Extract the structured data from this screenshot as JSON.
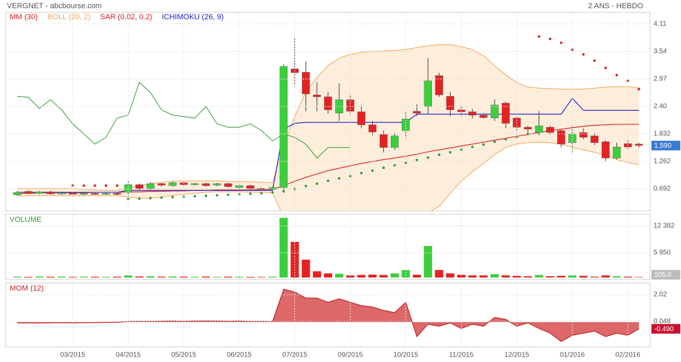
{
  "chart_data": [
    {
      "type": "candlestick",
      "title": "VERGNET - abcbourse.com",
      "subtitle": "2 ANS - HEBDO",
      "categories": [
        null,
        null,
        null,
        null,
        null,
        "03/2015",
        null,
        null,
        null,
        null,
        "04/2015",
        null,
        null,
        null,
        null,
        "05/2015",
        null,
        null,
        null,
        null,
        "06/2015",
        null,
        null,
        null,
        null,
        "07/2015",
        null,
        null,
        null,
        null,
        "09/2015",
        null,
        null,
        null,
        null,
        "10/2015",
        null,
        null,
        null,
        null,
        "11/2015",
        null,
        null,
        null,
        null,
        "12/2015",
        null,
        null,
        null,
        null,
        "01/2016",
        null,
        null,
        null,
        null,
        "02/2016",
        null
      ],
      "open": [
        0.57,
        0.64,
        0.6,
        0.63,
        0.59,
        0.61,
        0.58,
        0.6,
        0.59,
        0.6,
        0.62,
        0.78,
        0.7,
        0.8,
        0.76,
        0.82,
        0.78,
        0.8,
        0.77,
        0.8,
        0.72,
        0.76,
        0.7,
        0.68,
        0.72,
        3.18,
        3.11,
        2.64,
        2.6,
        2.26,
        2.54,
        2.29,
        2.02,
        1.82,
        1.55,
        1.9,
        2.3,
        2.4,
        3.04,
        2.61,
        2.33,
        2.29,
        2.22,
        2.16,
        2.47,
        2.16,
        1.97,
        1.86,
        1.97,
        1.9,
        1.65,
        1.86,
        1.79,
        1.67,
        1.33,
        1.63,
        1.62
      ],
      "high": [
        0.65,
        0.66,
        0.65,
        0.65,
        0.63,
        0.63,
        0.62,
        0.62,
        0.62,
        0.62,
        0.85,
        0.8,
        0.83,
        0.82,
        0.85,
        0.84,
        0.82,
        0.82,
        0.82,
        0.82,
        0.78,
        0.78,
        0.72,
        0.74,
        3.27,
        3.83,
        3.33,
        2.9,
        2.7,
        2.88,
        2.65,
        2.42,
        2.1,
        1.9,
        1.85,
        2.3,
        2.45,
        3.4,
        3.1,
        2.7,
        2.4,
        2.35,
        2.25,
        2.55,
        2.5,
        2.2,
        2.0,
        2.3,
        2.0,
        1.93,
        2.0,
        1.95,
        1.85,
        1.7,
        1.65,
        1.7,
        1.65
      ],
      "low": [
        0.55,
        0.58,
        0.58,
        0.57,
        0.57,
        0.56,
        0.56,
        0.57,
        0.57,
        0.56,
        0.55,
        0.68,
        0.68,
        0.74,
        0.74,
        0.76,
        0.76,
        0.74,
        0.75,
        0.72,
        0.7,
        0.68,
        0.66,
        0.66,
        0.65,
        2.83,
        2.3,
        2.3,
        2.25,
        2.1,
        2.25,
        1.95,
        1.8,
        1.45,
        1.5,
        1.75,
        2.2,
        2.25,
        2.6,
        2.2,
        2.2,
        2.15,
        2.15,
        2.1,
        1.95,
        1.9,
        1.85,
        1.8,
        1.82,
        1.55,
        1.45,
        1.72,
        1.6,
        1.27,
        1.3,
        1.52,
        1.55
      ],
      "close": [
        0.62,
        0.6,
        0.63,
        0.59,
        0.61,
        0.58,
        0.6,
        0.59,
        0.6,
        0.58,
        0.78,
        0.7,
        0.8,
        0.77,
        0.82,
        0.78,
        0.8,
        0.76,
        0.8,
        0.74,
        0.76,
        0.7,
        0.68,
        0.72,
        3.23,
        3.1,
        2.66,
        2.6,
        2.33,
        2.54,
        2.3,
        2.02,
        1.87,
        1.55,
        1.79,
        2.14,
        2.26,
        2.93,
        2.64,
        2.33,
        2.29,
        2.22,
        2.17,
        2.43,
        2.05,
        1.97,
        1.93,
        2.0,
        1.86,
        1.62,
        1.83,
        1.76,
        1.65,
        1.33,
        1.56,
        1.56,
        1.59
      ],
      "up_color": "#3ccf3c",
      "down_color": "#e52222",
      "series": [
        {
          "name": "MM (30)",
          "style": "line",
          "color": "#d91e1e",
          "values": [
            0.6,
            0.6,
            0.61,
            0.61,
            0.61,
            0.61,
            0.61,
            0.62,
            0.62,
            0.62,
            0.63,
            0.63,
            0.64,
            0.64,
            0.65,
            0.65,
            0.66,
            0.66,
            0.67,
            0.67,
            0.67,
            0.67,
            0.68,
            0.68,
            0.76,
            0.85,
            0.93,
            1.0,
            1.07,
            1.12,
            1.17,
            1.22,
            1.26,
            1.3,
            1.33,
            1.37,
            1.41,
            1.46,
            1.5,
            1.54,
            1.58,
            1.62,
            1.66,
            1.7,
            1.74,
            1.78,
            1.82,
            1.86,
            1.9,
            1.93,
            1.96,
            1.99,
            2.01,
            2.02,
            2.03,
            2.03,
            2.03
          ]
        },
        {
          "name": "BOLL (20, 2)",
          "style": "band",
          "color": "#f2a65a",
          "fill": "#fde8d2",
          "values": [
            0.7,
            0.7,
            0.7,
            0.7,
            0.7,
            0.7,
            0.68,
            0.67,
            0.66,
            0.66,
            0.72,
            0.76,
            0.8,
            0.83,
            0.85,
            0.86,
            0.86,
            0.86,
            0.86,
            0.85,
            0.84,
            0.84,
            0.83,
            0.82,
            1.6,
            2.19,
            2.7,
            3.0,
            3.25,
            3.4,
            3.48,
            3.52,
            3.54,
            3.55,
            3.56,
            3.58,
            3.62,
            3.66,
            3.68,
            3.68,
            3.64,
            3.58,
            3.45,
            3.25,
            3.05,
            2.9,
            2.8,
            2.78,
            2.77,
            2.76,
            2.76,
            2.76,
            2.78,
            2.8,
            2.81,
            2.81,
            2.79
          ],
          "lower": [
            0.55,
            0.55,
            0.55,
            0.55,
            0.55,
            0.55,
            0.55,
            0.55,
            0.55,
            0.55,
            0.52,
            0.5,
            0.5,
            0.52,
            0.55,
            0.58,
            0.6,
            0.62,
            0.63,
            0.63,
            0.63,
            0.62,
            0.62,
            0.61,
            0.1,
            -0.35,
            -0.6,
            -0.75,
            -0.85,
            -0.9,
            -0.9,
            -0.85,
            -0.75,
            -0.6,
            -0.4,
            -0.2,
            0.0,
            0.2,
            0.33,
            0.6,
            0.85,
            1.05,
            1.22,
            1.4,
            1.55,
            1.62,
            1.65,
            1.66,
            1.65,
            1.62,
            1.55,
            1.5,
            1.45,
            1.38,
            1.3,
            1.24,
            1.19
          ]
        },
        {
          "name": "SAR (0.02, 0.2)",
          "style": "dots",
          "color": "#d91e1e",
          "below_color": "#2e9e2e",
          "values": [
            null,
            null,
            null,
            null,
            null,
            0.76,
            0.76,
            0.76,
            0.76,
            0.76,
            0.48,
            0.49,
            0.5,
            0.51,
            0.52,
            0.53,
            0.54,
            0.55,
            0.56,
            0.57,
            0.58,
            0.59,
            0.6,
            0.62,
            0.64,
            0.69,
            0.75,
            0.8,
            0.86,
            0.91,
            0.96,
            1.02,
            1.07,
            1.13,
            1.18,
            1.23,
            1.29,
            1.34,
            1.4,
            1.45,
            1.5,
            1.56,
            1.61,
            1.67,
            1.72,
            1.77,
            1.83,
            3.85,
            3.8,
            3.72,
            3.58,
            3.48,
            3.35,
            3.2,
            3.05,
            2.93,
            2.76
          ]
        },
        {
          "name": "ICHIMOKU (26, 9)",
          "style": "line",
          "color": "#1a1acc",
          "values": [
            0.62,
            0.62,
            0.62,
            0.62,
            0.62,
            0.62,
            0.62,
            0.62,
            0.62,
            0.62,
            0.66,
            0.66,
            0.66,
            0.66,
            0.66,
            0.66,
            0.66,
            0.66,
            0.66,
            0.66,
            0.66,
            0.66,
            0.66,
            0.66,
            1.93,
            2.05,
            2.07,
            2.07,
            2.07,
            2.07,
            2.07,
            2.07,
            2.07,
            2.07,
            2.07,
            2.07,
            2.24,
            2.24,
            2.24,
            2.24,
            2.24,
            2.24,
            2.24,
            2.24,
            2.24,
            2.24,
            2.24,
            2.24,
            2.24,
            2.24,
            2.57,
            2.32,
            2.32,
            2.32,
            2.32,
            2.32,
            2.32
          ],
          "lagging": [
            2.61,
            2.59,
            2.36,
            2.54,
            2.33,
            2.04,
            1.83,
            1.62,
            1.76,
            2.16,
            2.22,
            2.9,
            2.69,
            2.33,
            2.22,
            2.19,
            2.16,
            2.4,
            2.04,
            1.97,
            1.97,
            2.04,
            1.9,
            1.69,
            1.83,
            1.76,
            1.62,
            1.33,
            1.55,
            1.55,
            1.55,
            null,
            null,
            null,
            null,
            null,
            null,
            null,
            null,
            null,
            null,
            null,
            null,
            null,
            null,
            null,
            null,
            null,
            null,
            null,
            null,
            null,
            null,
            null,
            null,
            null,
            null
          ],
          "lagging_color": "#2e9e2e"
        }
      ],
      "ylim": [
        0.236,
        4.35
      ],
      "yticks": [
        4.11,
        3.54,
        2.97,
        {
          "value": 2.4,
          "label": "2.40"
        },
        1.832,
        1.262,
        0.692
      ],
      "grid": true,
      "last": {
        "value": 1.59,
        "label": "1.590",
        "color": "#3a7bd5"
      }
    },
    {
      "type": "bar",
      "title": "VOLUME",
      "color": "#2e9e2e",
      "values": [
        200,
        150,
        250,
        180,
        220,
        150,
        200,
        180,
        160,
        200,
        500,
        250,
        300,
        200,
        250,
        200,
        180,
        220,
        150,
        200,
        180,
        150,
        120,
        200,
        14350,
        8575,
        4290,
        1500,
        990,
        900,
        500,
        600,
        700,
        600,
        990,
        1800,
        660,
        7585,
        1800,
        990,
        660,
        500,
        500,
        800,
        500,
        400,
        300,
        600,
        300,
        400,
        500,
        400,
        200,
        500,
        300,
        200,
        105
      ],
      "ylim": [
        -495,
        15185
      ],
      "yticks": [
        {
          "value": 12382,
          "label": "12 382"
        },
        {
          "value": 5950,
          "label": "5 950"
        }
      ],
      "grid": true,
      "last": {
        "value": 105,
        "label": "105.0",
        "color": "#bdbdbd"
      }
    },
    {
      "type": "line",
      "title": "MOM (12)",
      "color": "#c0282a",
      "fill": "#d9585a",
      "values": [
        -0.05,
        -0.06,
        -0.06,
        -0.05,
        -0.04,
        -0.05,
        -0.04,
        -0.03,
        -0.02,
        -0.02,
        0.05,
        0.06,
        0.06,
        0.07,
        0.08,
        0.07,
        0.08,
        0.09,
        0.08,
        0.07,
        0.08,
        0.06,
        0.05,
        0.04,
        2.42,
        2.22,
        1.77,
        1.77,
        1.46,
        1.72,
        1.46,
        1.21,
        1.11,
        0.86,
        0.7,
        1.46,
        -1.06,
        -0.15,
        -0.3,
        -0.05,
        -0.46,
        -0.15,
        -0.3,
        0.35,
        0.2,
        -0.3,
        -0.05,
        -0.46,
        -0.81,
        -1.42,
        -0.96,
        -0.81,
        -0.66,
        -1.06,
        -0.81,
        -0.96,
        -0.49
      ],
      "ylim": [
        -1.82,
        2.88
      ],
      "yticks": [
        2.02,
        0.048
      ],
      "grid": true,
      "last": {
        "value": -0.49,
        "label": "-0.490",
        "color": "#c8102e"
      }
    }
  ]
}
